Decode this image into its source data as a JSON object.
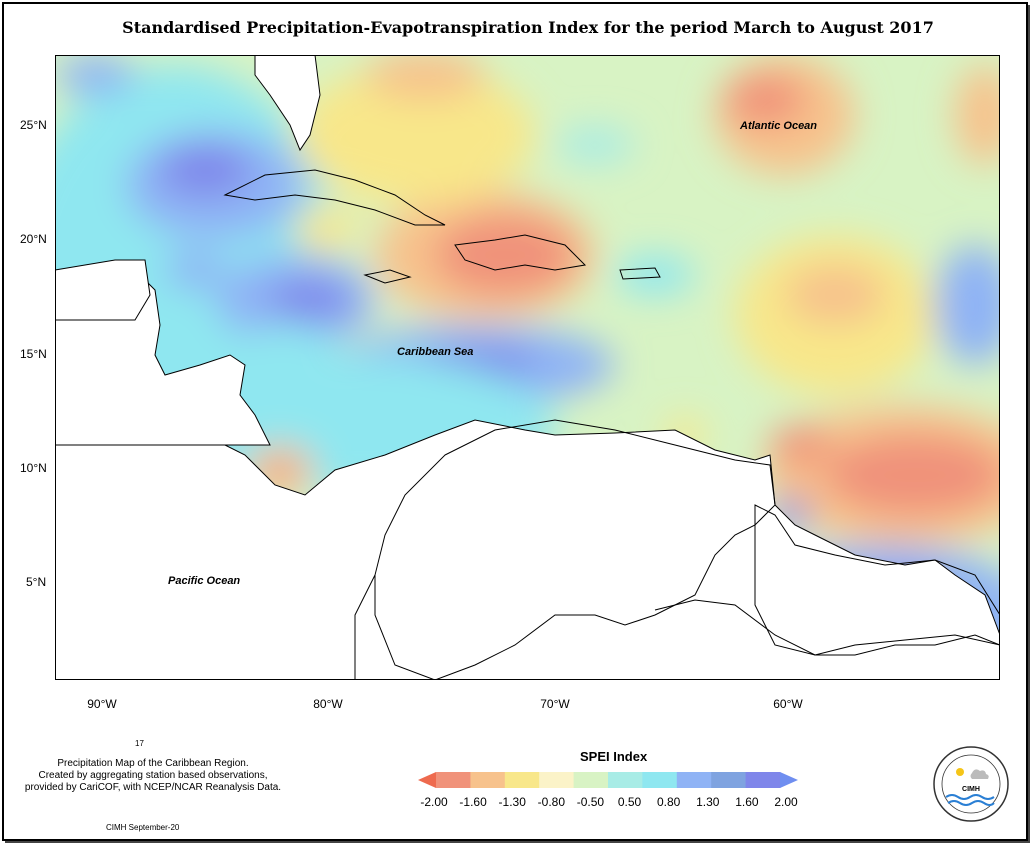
{
  "title": "Standardised Precipitation-Evapotranspiration Index for the period March to August 2017",
  "axes": {
    "lat": [
      "25°N",
      "20°N",
      "15°N",
      "10°N",
      "5°N"
    ],
    "lon": [
      "90°W",
      "80°W",
      "70°W",
      "60°W"
    ]
  },
  "labels": {
    "atlantic": "Atlantic Ocean",
    "caribbean": "Caribbean Sea",
    "pacific": "Pacific Ocean"
  },
  "page_number": "17",
  "credit": [
    "Precipitation Map of the Caribbean Region.",
    "Created by aggregating station based observations,",
    "provided by CariCOF, with NCEP/NCAR Reanalysis Data."
  ],
  "footer": "CIMH September-20",
  "logo_text": "CIMH",
  "legend": {
    "title": "SPEI Index",
    "ticks": [
      "-2.00",
      "-1.60",
      "-1.30",
      "-0.80",
      "-0.50",
      "0.50",
      "0.80",
      "1.30",
      "1.60",
      "2.00"
    ],
    "colors": [
      "#f0927a",
      "#f7c28c",
      "#f8e78a",
      "#fbf3c8",
      "#d8f3c4",
      "#a8ece6",
      "#8fe7f0",
      "#8fb3f5",
      "#7fa3e0",
      "#7f86ea",
      "#7aa7c8"
    ]
  }
}
